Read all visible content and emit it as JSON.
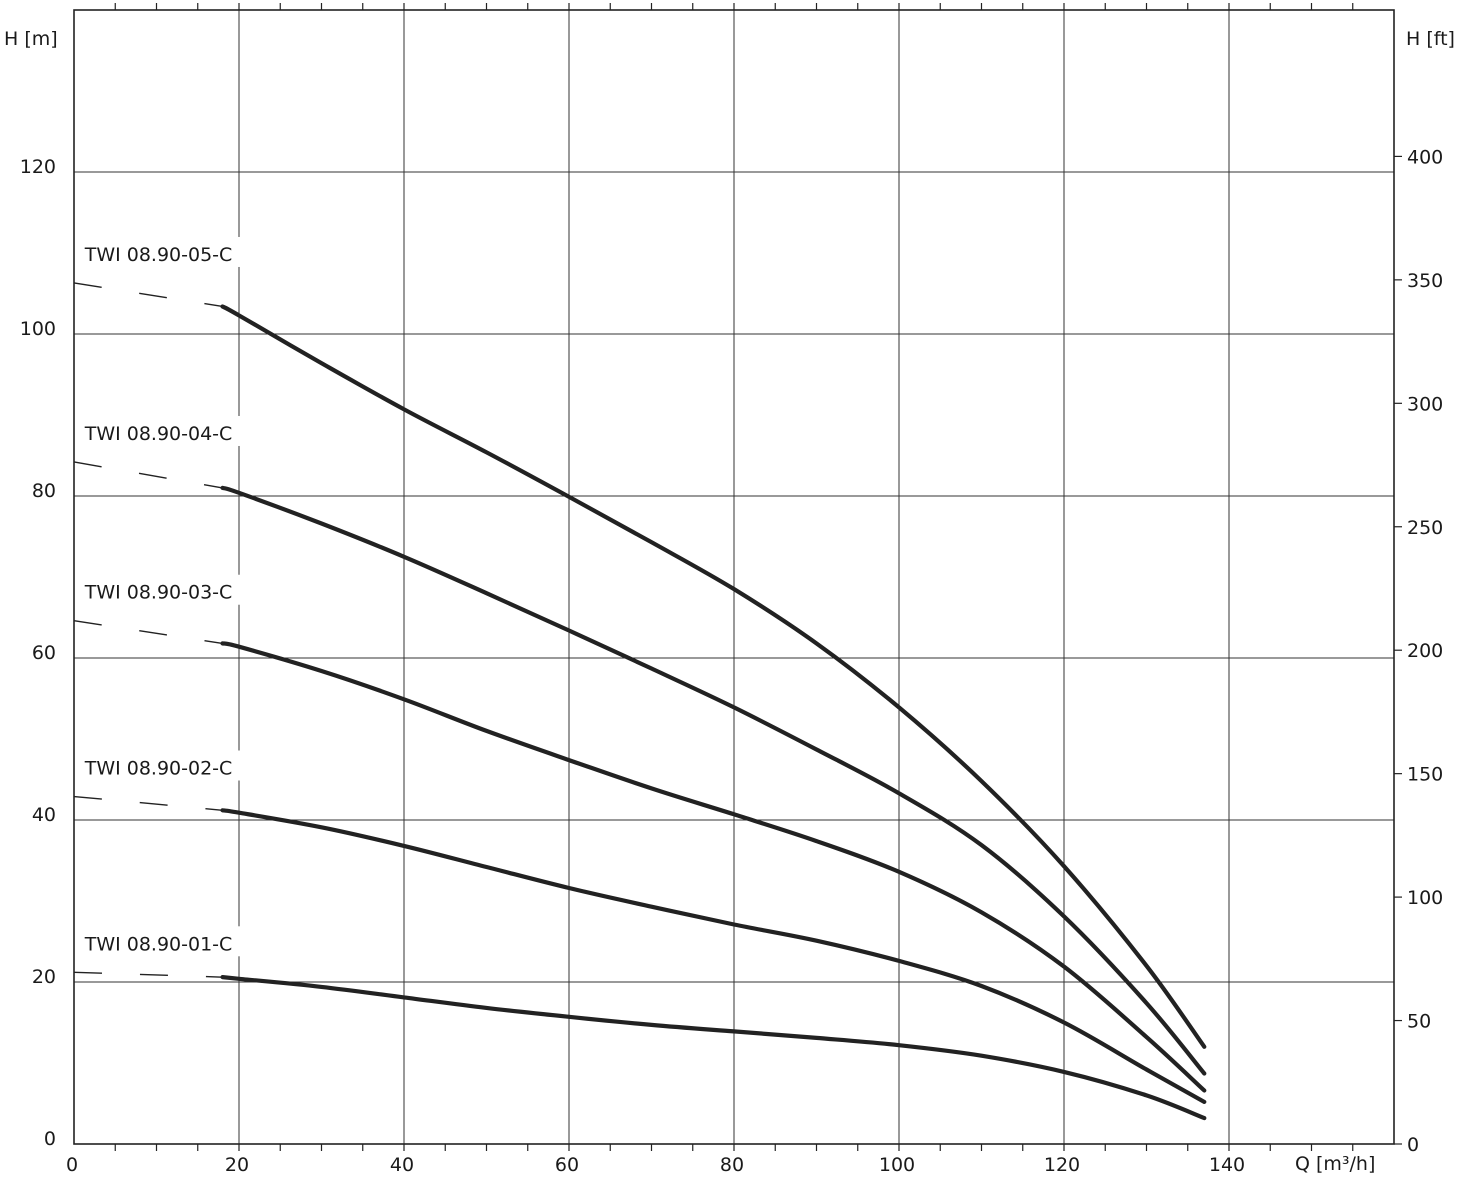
{
  "chart_data": {
    "type": "line",
    "xlabel": "Q [m³/h]",
    "ylabel": "H [m]",
    "y2label": "H [ft]",
    "xlim": [
      0,
      160
    ],
    "ylim": [
      0,
      140
    ],
    "y2lim": [
      0,
      459.3
    ],
    "x_ticks": [
      0,
      20,
      40,
      60,
      80,
      100,
      120,
      140
    ],
    "x_tick_labels": [
      "0",
      "20",
      "40",
      "60",
      "80",
      "100",
      "120",
      "140"
    ],
    "y_ticks": [
      0,
      20,
      40,
      60,
      80,
      100,
      120
    ],
    "y_tick_labels": [
      "0",
      "20",
      "40",
      "60",
      "80",
      "100",
      "120"
    ],
    "y2_ticks": [
      0,
      50,
      100,
      150,
      200,
      250,
      300,
      350,
      400
    ],
    "y2_tick_labels": [
      "0",
      "50",
      "100",
      "150",
      "200",
      "250",
      "300",
      "350",
      "400"
    ],
    "grid": true,
    "line_color": "#222222",
    "series": [
      {
        "name": "TWI 08.90-05-C",
        "dashed_part": [
          [
            0,
            106.3
          ],
          [
            18,
            103.4
          ]
        ],
        "points": [
          [
            18,
            103.4
          ],
          [
            20,
            102.3
          ],
          [
            30,
            96.4
          ],
          [
            40,
            90.7
          ],
          [
            50,
            85.4
          ],
          [
            60,
            79.9
          ],
          [
            70,
            74.3
          ],
          [
            80,
            68.5
          ],
          [
            90,
            61.8
          ],
          [
            100,
            53.9
          ],
          [
            110,
            44.8
          ],
          [
            120,
            34.3
          ],
          [
            130,
            22.0
          ],
          [
            137,
            12.0
          ]
        ]
      },
      {
        "name": "TWI 08.90-04-C",
        "dashed_part": [
          [
            0,
            84.2
          ],
          [
            18,
            81.0
          ]
        ],
        "points": [
          [
            18,
            81.0
          ],
          [
            20,
            80.4
          ],
          [
            30,
            76.6
          ],
          [
            40,
            72.5
          ],
          [
            50,
            68.0
          ],
          [
            60,
            63.4
          ],
          [
            70,
            58.7
          ],
          [
            80,
            53.9
          ],
          [
            90,
            48.7
          ],
          [
            100,
            43.3
          ],
          [
            110,
            36.9
          ],
          [
            120,
            28.1
          ],
          [
            130,
            17.4
          ],
          [
            137,
            8.7
          ]
        ]
      },
      {
        "name": "TWI 08.90-03-C",
        "dashed_part": [
          [
            0,
            64.6
          ],
          [
            18,
            61.8
          ]
        ],
        "points": [
          [
            18,
            61.8
          ],
          [
            20,
            61.4
          ],
          [
            30,
            58.4
          ],
          [
            40,
            54.9
          ],
          [
            50,
            51.0
          ],
          [
            60,
            47.4
          ],
          [
            70,
            43.9
          ],
          [
            80,
            40.7
          ],
          [
            90,
            37.4
          ],
          [
            100,
            33.6
          ],
          [
            110,
            28.6
          ],
          [
            120,
            21.9
          ],
          [
            130,
            13.2
          ],
          [
            137,
            6.6
          ]
        ]
      },
      {
        "name": "TWI 08.90-02-C",
        "dashed_part": [
          [
            0,
            42.9
          ],
          [
            18,
            41.2
          ]
        ],
        "points": [
          [
            18,
            41.2
          ],
          [
            20,
            40.9
          ],
          [
            30,
            39.1
          ],
          [
            40,
            36.8
          ],
          [
            50,
            34.2
          ],
          [
            60,
            31.6
          ],
          [
            70,
            29.3
          ],
          [
            80,
            27.1
          ],
          [
            90,
            25.1
          ],
          [
            100,
            22.6
          ],
          [
            110,
            19.5
          ],
          [
            120,
            15.0
          ],
          [
            130,
            9.2
          ],
          [
            137,
            5.2
          ]
        ]
      },
      {
        "name": "TWI 08.90-01-C",
        "dashed_part": [
          [
            0,
            21.2
          ],
          [
            18,
            20.6
          ]
        ],
        "points": [
          [
            18,
            20.6
          ],
          [
            20,
            20.4
          ],
          [
            30,
            19.4
          ],
          [
            40,
            18.1
          ],
          [
            50,
            16.8
          ],
          [
            60,
            15.7
          ],
          [
            70,
            14.7
          ],
          [
            80,
            13.9
          ],
          [
            90,
            13.1
          ],
          [
            100,
            12.2
          ],
          [
            110,
            10.9
          ],
          [
            120,
            8.9
          ],
          [
            130,
            6.0
          ],
          [
            137,
            3.2
          ]
        ]
      }
    ]
  }
}
